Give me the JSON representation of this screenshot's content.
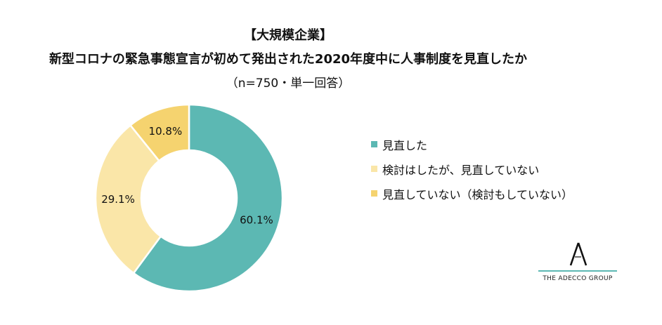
{
  "header": {
    "title_line1": "【大規模企業】",
    "title_line2": "新型コロナの緊急事態宣言が初めて発出された2020年度中に人事制度を見直したか",
    "subtitle": "（n=750・単一回答）"
  },
  "chart_data": {
    "type": "pie",
    "variant": "donut",
    "categories": [
      "見直した",
      "検討はしたが、見直していない",
      "見直していない（検討もしていない）"
    ],
    "values": [
      60.1,
      29.1,
      10.8
    ],
    "data_labels": [
      "60.1%",
      "29.1%",
      "10.8%"
    ],
    "colors": [
      "#5cb8b3",
      "#fae6a8",
      "#f5d36f"
    ],
    "start": "12 o'clock, clockwise",
    "legend_position": "right"
  },
  "legend": {
    "items": [
      {
        "label": "見直した",
        "color": "#5cb8b3"
      },
      {
        "label": "検討はしたが、見直していない",
        "color": "#fae6a8"
      },
      {
        "label": "見直していない（検討もしていない）",
        "color": "#f5d36f"
      }
    ]
  },
  "logo": {
    "text": "THE ADECCO GROUP",
    "accent_color": "#5cb8b3"
  }
}
